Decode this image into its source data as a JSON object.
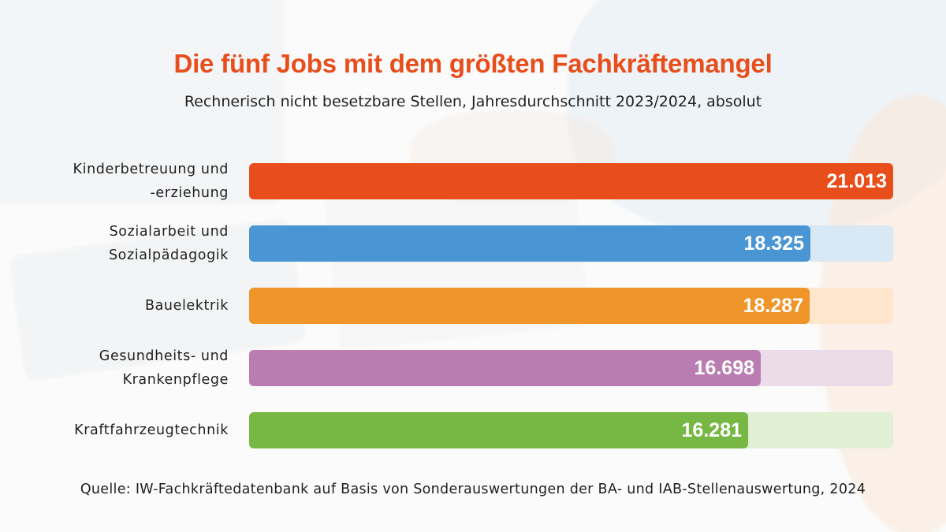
{
  "title": "Die fünf Jobs mit dem größten Fachkräftemangel",
  "subtitle": "Rechnerisch nicht besetzbare Stellen, Jahresdurchschnitt 2023/2024, absolut",
  "source": "Quelle: IW-Fachkräftedatenbank auf Basis von Sonderauswertungen der BA- und IAB-Stellenauswertung, 2024",
  "colors": {
    "title": "#e84e1b",
    "bars": [
      "#e84e1b",
      "#4a96d4",
      "#f0952a",
      "#b97db2",
      "#77b844"
    ],
    "tracks": [
      "#fbd9cb",
      "#d9e8f5",
      "#fde6cc",
      "#ecdcea",
      "#e1efd4"
    ]
  },
  "chart_data": {
    "type": "bar",
    "orientation": "horizontal",
    "title": "Die fünf Jobs mit dem größten Fachkräftemangel",
    "subtitle": "Rechnerisch nicht besetzbare Stellen, Jahresdurchschnitt 2023/2024, absolut",
    "categories": [
      "Kinderbetreuung und\n-erziehung",
      "Sozialarbeit und\nSozialpädagogik",
      "Bauelektrik",
      "Gesundheits- und\nKrankenpflege",
      "Kraftfahrzeugtechnik"
    ],
    "values": [
      21013,
      18325,
      18287,
      16698,
      16281
    ],
    "value_labels": [
      "21.013",
      "18.325",
      "18.287",
      "16.698",
      "16.281"
    ],
    "xlim": [
      0,
      21013
    ],
    "grid": false,
    "legend": "none"
  }
}
